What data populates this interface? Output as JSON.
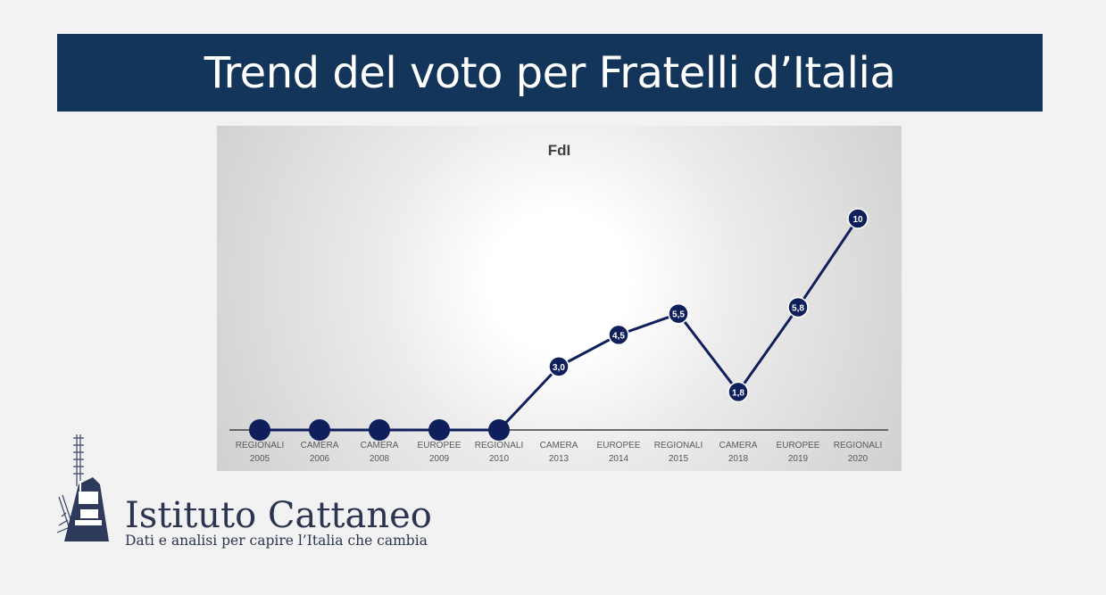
{
  "header": {
    "title": "Trend del voto per Fratelli d’Italia"
  },
  "colors": {
    "banner": "#14355a",
    "series": "#0f1f5c",
    "axis": "#404040"
  },
  "chart_data": {
    "type": "line",
    "title": "FdI",
    "categories": [
      [
        "REGIONALI",
        "2005"
      ],
      [
        "CAMERA",
        "2006"
      ],
      [
        "CAMERA",
        "2008"
      ],
      [
        "EUROPEE",
        "2009"
      ],
      [
        "REGIONALI",
        "2010"
      ],
      [
        "CAMERA",
        "2013"
      ],
      [
        "EUROPEE",
        "2014"
      ],
      [
        "REGIONALI",
        "2015"
      ],
      [
        "CAMERA",
        "2018"
      ],
      [
        "EUROPEE",
        "2019"
      ],
      [
        "REGIONALI",
        "2020"
      ]
    ],
    "series": [
      {
        "values": [
          0,
          0,
          0,
          0,
          0,
          3.0,
          4.5,
          5.5,
          1.8,
          5.8,
          10
        ],
        "labels": [
          "",
          "",
          "",
          "",
          "",
          "3,0",
          "4,5",
          "5,5",
          "1,8",
          "5,8",
          "10"
        ]
      }
    ],
    "xlabel": "",
    "ylabel": "",
    "ylim": [
      0,
      10
    ],
    "grid": false,
    "legend": "none"
  },
  "logo": {
    "name": "Istituto Cattaneo",
    "tagline": "Dati e analisi per capire l’Italia che cambia"
  }
}
